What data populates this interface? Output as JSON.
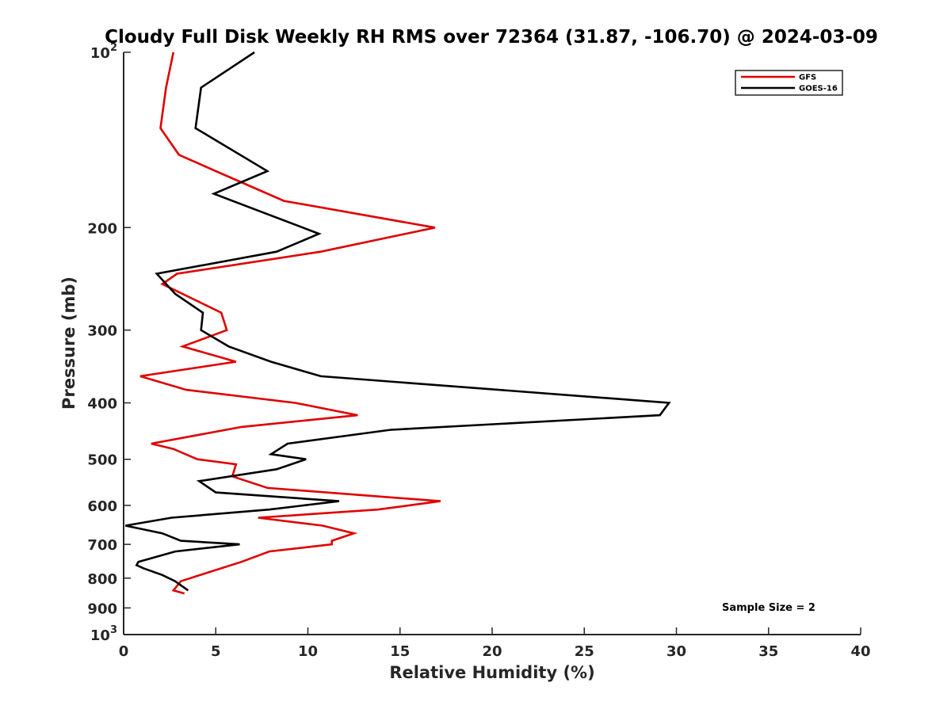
{
  "chart_data": {
    "type": "line",
    "title": "Cloudy Full Disk Weekly RH RMS over 72364 (31.87, -106.70) @ 2024-03-09",
    "xlabel": "Relative Humidity (%)",
    "ylabel": "Pressure (mb)",
    "xlim": [
      0,
      40
    ],
    "ylim": [
      100,
      1000
    ],
    "y_scale": "log",
    "y_reversed": true,
    "grid": false,
    "legend_position": "top-right",
    "x_ticks": [
      "0",
      "5",
      "10",
      "15",
      "20",
      "25",
      "30",
      "35",
      "40"
    ],
    "y_ticks": [
      {
        "value": 100,
        "base": "10",
        "exp": "2"
      },
      {
        "value": 200,
        "label": "200"
      },
      {
        "value": 300,
        "label": "300"
      },
      {
        "value": 400,
        "label": "400"
      },
      {
        "value": 500,
        "label": "500"
      },
      {
        "value": 600,
        "label": "600"
      },
      {
        "value": 700,
        "label": "700"
      },
      {
        "value": 800,
        "label": "800"
      },
      {
        "value": 900,
        "label": "900"
      },
      {
        "value": 1000,
        "base": "10",
        "exp": "3"
      }
    ],
    "annotation": "Sample Size = 2",
    "series": [
      {
        "name": "GFS",
        "color": "#e00000",
        "points": [
          [
            2.7,
            100
          ],
          [
            2.3,
            115
          ],
          [
            2.0,
            135
          ],
          [
            3.0,
            150
          ],
          [
            5.0,
            160
          ],
          [
            8.7,
            180
          ],
          [
            16.9,
            200
          ],
          [
            10.7,
            220
          ],
          [
            2.9,
            240
          ],
          [
            2.1,
            250
          ],
          [
            5.3,
            280
          ],
          [
            5.6,
            300
          ],
          [
            3.2,
            320
          ],
          [
            6.1,
            340
          ],
          [
            0.9,
            360
          ],
          [
            3.4,
            380
          ],
          [
            9.3,
            400
          ],
          [
            12.7,
            420
          ],
          [
            6.4,
            440
          ],
          [
            1.5,
            470
          ],
          [
            2.7,
            480
          ],
          [
            4.0,
            500
          ],
          [
            6.1,
            510
          ],
          [
            5.9,
            535
          ],
          [
            7.8,
            560
          ],
          [
            17.2,
            590
          ],
          [
            13.8,
            610
          ],
          [
            7.3,
            630
          ],
          [
            10.8,
            650
          ],
          [
            12.5,
            670
          ],
          [
            11.3,
            690
          ],
          [
            11.3,
            700
          ],
          [
            7.9,
            720
          ],
          [
            6.4,
            750
          ],
          [
            4.7,
            780
          ],
          [
            3.1,
            810
          ],
          [
            2.7,
            840
          ],
          [
            3.3,
            850
          ]
        ]
      },
      {
        "name": "GOES-16",
        "color": "#000000",
        "points": [
          [
            7.1,
            100
          ],
          [
            4.2,
            115
          ],
          [
            3.9,
            135
          ],
          [
            7.8,
            160
          ],
          [
            4.9,
            175
          ],
          [
            10.6,
            205
          ],
          [
            8.3,
            220
          ],
          [
            1.8,
            240
          ],
          [
            2.8,
            260
          ],
          [
            4.3,
            280
          ],
          [
            4.2,
            300
          ],
          [
            5.7,
            320
          ],
          [
            8.0,
            340
          ],
          [
            10.7,
            360
          ],
          [
            29.6,
            400
          ],
          [
            29.1,
            420
          ],
          [
            14.5,
            445
          ],
          [
            8.9,
            470
          ],
          [
            8.0,
            490
          ],
          [
            9.9,
            500
          ],
          [
            8.3,
            520
          ],
          [
            4.1,
            545
          ],
          [
            5.0,
            570
          ],
          [
            11.7,
            590
          ],
          [
            7.9,
            610
          ],
          [
            2.6,
            630
          ],
          [
            0.1,
            650
          ],
          [
            2.1,
            670
          ],
          [
            3.1,
            690
          ],
          [
            6.3,
            700
          ],
          [
            2.8,
            720
          ],
          [
            0.8,
            750
          ],
          [
            0.7,
            760
          ],
          [
            1.1,
            770
          ],
          [
            2.1,
            790
          ],
          [
            2.8,
            810
          ],
          [
            3.5,
            840
          ]
        ]
      }
    ]
  }
}
